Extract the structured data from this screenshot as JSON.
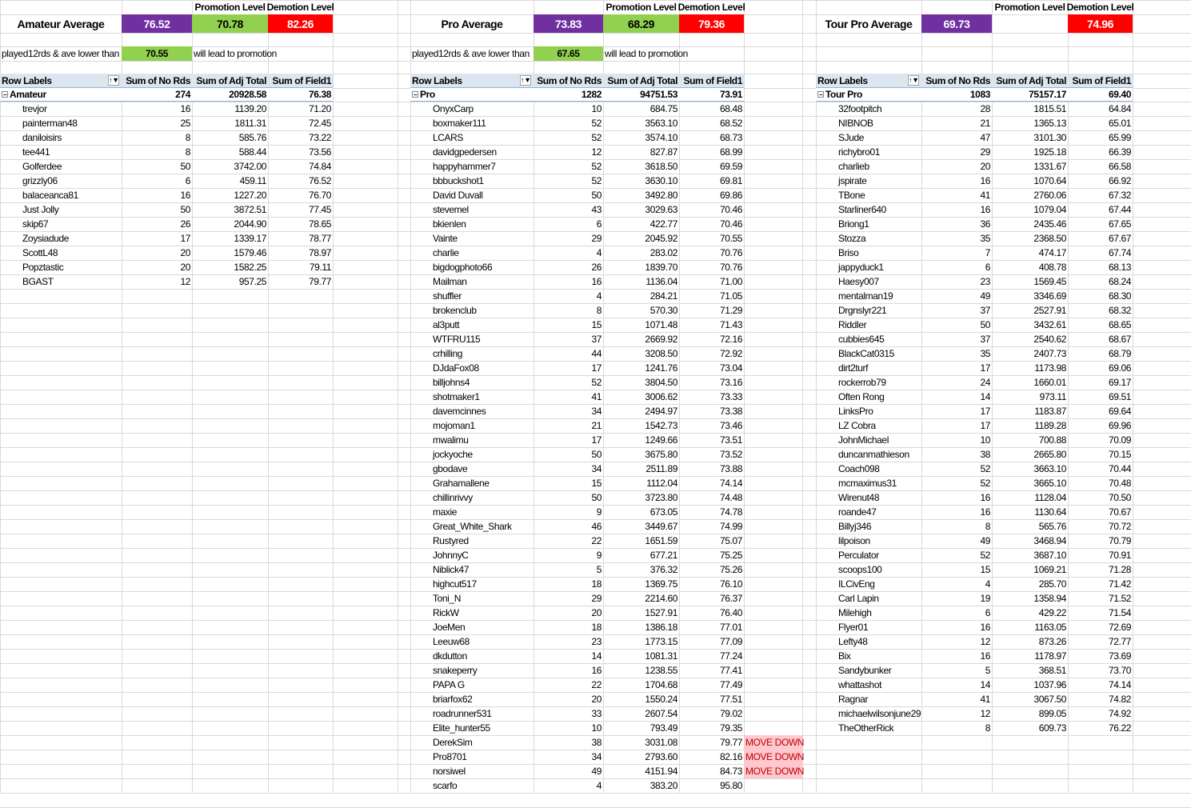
{
  "colors": {
    "average": "#7030A0",
    "promotion": "#92D050",
    "demotion": "#FF0000",
    "move_down_fill": "#FFC7CE",
    "move_down_text": "#C00000",
    "header": "#DCE6F1"
  },
  "icons": {
    "filter": "filter-sort-icon",
    "collapse": "collapse-minus-icon"
  },
  "labels": {
    "promotion_level": "Promotion Level",
    "demotion_level": "Demotion Level",
    "played_rule": "played12rds & ave lower than",
    "promotion_note": "will lead to promotion",
    "row_labels": "Row Labels",
    "col_rds": "Sum of No Rds",
    "col_adj": "Sum of Adj Total",
    "col_field": "Sum of Field1"
  },
  "panels": [
    {
      "average_title": "Amateur Average",
      "average": "76.52",
      "promotion": "70.78",
      "demotion": "82.26",
      "played_threshold": "70.55",
      "group": "Amateur",
      "total": {
        "rds": "274",
        "adj": "20928.58",
        "field": "76.38"
      },
      "rows": [
        [
          "trevjor",
          "16",
          "1139.20",
          "71.20"
        ],
        [
          "painterman48",
          "25",
          "1811.31",
          "72.45"
        ],
        [
          "daniloisirs",
          "8",
          "585.76",
          "73.22"
        ],
        [
          "tee441",
          "8",
          "588.44",
          "73.56"
        ],
        [
          "Golferdee",
          "50",
          "3742.00",
          "74.84"
        ],
        [
          "grizzly06",
          "6",
          "459.11",
          "76.52"
        ],
        [
          "balaceanca81",
          "16",
          "1227.20",
          "76.70"
        ],
        [
          "Just Jolly",
          "50",
          "3872.51",
          "77.45"
        ],
        [
          "skip67",
          "26",
          "2044.90",
          "78.65"
        ],
        [
          "Zoysiadude",
          "17",
          "1339.17",
          "78.77"
        ],
        [
          "ScottL48",
          "20",
          "1579.46",
          "78.97"
        ],
        [
          "Popztastic",
          "20",
          "1582.25",
          "79.11"
        ],
        [
          "BGAST",
          "12",
          "957.25",
          "79.77"
        ]
      ]
    },
    {
      "average_title": "Pro Average",
      "average": "73.83",
      "promotion": "68.29",
      "demotion": "79.36",
      "played_threshold": "67.65",
      "group": "Pro",
      "total": {
        "rds": "1282",
        "adj": "94751.53",
        "field": "73.91"
      },
      "rows": [
        [
          "OnyxCarp",
          "10",
          "684.75",
          "68.48"
        ],
        [
          "boxmaker111",
          "52",
          "3563.10",
          "68.52"
        ],
        [
          "LCARS",
          "52",
          "3574.10",
          "68.73"
        ],
        [
          "davidgpedersen",
          "12",
          "827.87",
          "68.99"
        ],
        [
          "happyhammer7",
          "52",
          "3618.50",
          "69.59"
        ],
        [
          "bbbuckshot1",
          "52",
          "3630.10",
          "69.81"
        ],
        [
          "David Duvall",
          "50",
          "3492.80",
          "69.86"
        ],
        [
          "stevemel",
          "43",
          "3029.63",
          "70.46"
        ],
        [
          "bkienlen",
          "6",
          "422.77",
          "70.46"
        ],
        [
          "Vainte",
          "29",
          "2045.92",
          "70.55"
        ],
        [
          "charlie",
          "4",
          "283.02",
          "70.76"
        ],
        [
          "bigdogphoto66",
          "26",
          "1839.70",
          "70.76"
        ],
        [
          "Mailman",
          "16",
          "1136.04",
          "71.00"
        ],
        [
          "shuffler",
          "4",
          "284.21",
          "71.05"
        ],
        [
          "brokenclub",
          "8",
          "570.30",
          "71.29"
        ],
        [
          "al3putt",
          "15",
          "1071.48",
          "71.43"
        ],
        [
          "WTFRU115",
          "37",
          "2669.92",
          "72.16"
        ],
        [
          "crhilling",
          "44",
          "3208.50",
          "72.92"
        ],
        [
          "DJdaFox08",
          "17",
          "1241.76",
          "73.04"
        ],
        [
          "billjohns4",
          "52",
          "3804.50",
          "73.16"
        ],
        [
          "shotmaker1",
          "41",
          "3006.62",
          "73.33"
        ],
        [
          "davemcinnes",
          "34",
          "2494.97",
          "73.38"
        ],
        [
          "mojoman1",
          "21",
          "1542.73",
          "73.46"
        ],
        [
          "mwalimu",
          "17",
          "1249.66",
          "73.51"
        ],
        [
          "jockyoche",
          "50",
          "3675.80",
          "73.52"
        ],
        [
          "gbodave",
          "34",
          "2511.89",
          "73.88"
        ],
        [
          "Grahamallene",
          "15",
          "1112.04",
          "74.14"
        ],
        [
          "chillinrivvy",
          "50",
          "3723.80",
          "74.48"
        ],
        [
          "maxie",
          "9",
          "673.05",
          "74.78"
        ],
        [
          "Great_White_Shark",
          "46",
          "3449.67",
          "74.99"
        ],
        [
          "Rustyred",
          "22",
          "1651.59",
          "75.07"
        ],
        [
          "JohnnyC",
          "9",
          "677.21",
          "75.25"
        ],
        [
          "Niblick47",
          "5",
          "376.32",
          "75.26"
        ],
        [
          "highcut517",
          "18",
          "1369.75",
          "76.10"
        ],
        [
          "Toni_N",
          "29",
          "2214.60",
          "76.37"
        ],
        [
          "RickW",
          "20",
          "1527.91",
          "76.40"
        ],
        [
          "JoeMen",
          "18",
          "1386.18",
          "77.01"
        ],
        [
          "Leeuw68",
          "23",
          "1773.15",
          "77.09"
        ],
        [
          "dkdutton",
          "14",
          "1081.31",
          "77.24"
        ],
        [
          "snakeperry",
          "16",
          "1238.55",
          "77.41"
        ],
        [
          "PAPA G",
          "22",
          "1704.68",
          "77.49"
        ],
        [
          "briarfox62",
          "20",
          "1550.24",
          "77.51"
        ],
        [
          "roadrunner531",
          "33",
          "2607.54",
          "79.02"
        ],
        [
          "Elite_hunter55",
          "10",
          "793.49",
          "79.35"
        ],
        [
          "DerekSim",
          "38",
          "3031.08",
          "79.77",
          "MOVE DOWN"
        ],
        [
          "Pro8701",
          "34",
          "2793.60",
          "82.16",
          "MOVE DOWN"
        ],
        [
          "norsiwel",
          "49",
          "4151.94",
          "84.73",
          "MOVE DOWN"
        ],
        [
          "scarfo",
          "4",
          "383.20",
          "95.80"
        ]
      ]
    },
    {
      "average_title": "Tour Pro Average",
      "average": "69.73",
      "promotion": "",
      "demotion": "74.96",
      "group": "Tour Pro",
      "total": {
        "rds": "1083",
        "adj": "75157.17",
        "field": "69.40"
      },
      "rows": [
        [
          "32footpitch",
          "28",
          "1815.51",
          "64.84"
        ],
        [
          "NIBNOB",
          "21",
          "1365.13",
          "65.01"
        ],
        [
          "SJude",
          "47",
          "3101.30",
          "65.99"
        ],
        [
          "richybro01",
          "29",
          "1925.18",
          "66.39"
        ],
        [
          "charlieb",
          "20",
          "1331.67",
          "66.58"
        ],
        [
          "jspirate",
          "16",
          "1070.64",
          "66.92"
        ],
        [
          "TBone",
          "41",
          "2760.06",
          "67.32"
        ],
        [
          "Starliner640",
          "16",
          "1079.04",
          "67.44"
        ],
        [
          "Briong1",
          "36",
          "2435.46",
          "67.65"
        ],
        [
          "Stozza",
          "35",
          "2368.50",
          "67.67"
        ],
        [
          "Briso",
          "7",
          "474.17",
          "67.74"
        ],
        [
          "jappyduck1",
          "6",
          "408.78",
          "68.13"
        ],
        [
          "Haesy007",
          "23",
          "1569.45",
          "68.24"
        ],
        [
          "mentalman19",
          "49",
          "3346.69",
          "68.30"
        ],
        [
          "Drgnslyr221",
          "37",
          "2527.91",
          "68.32"
        ],
        [
          "Riddler",
          "50",
          "3432.61",
          "68.65"
        ],
        [
          "cubbies645",
          "37",
          "2540.62",
          "68.67"
        ],
        [
          "BlackCat0315",
          "35",
          "2407.73",
          "68.79"
        ],
        [
          "dirt2turf",
          "17",
          "1173.98",
          "69.06"
        ],
        [
          "rockerrob79",
          "24",
          "1660.01",
          "69.17"
        ],
        [
          "Often Rong",
          "14",
          "973.11",
          "69.51"
        ],
        [
          "LinksPro",
          "17",
          "1183.87",
          "69.64"
        ],
        [
          "LZ Cobra",
          "17",
          "1189.28",
          "69.96"
        ],
        [
          "JohnMichael",
          "10",
          "700.88",
          "70.09"
        ],
        [
          "duncanmathieson",
          "38",
          "2665.80",
          "70.15"
        ],
        [
          "Coach098",
          "52",
          "3663.10",
          "70.44"
        ],
        [
          "mcmaximus31",
          "52",
          "3665.10",
          "70.48"
        ],
        [
          "Wirenut48",
          "16",
          "1128.04",
          "70.50"
        ],
        [
          "roande47",
          "16",
          "1130.64",
          "70.67"
        ],
        [
          "Billyj346",
          "8",
          "565.76",
          "70.72"
        ],
        [
          "lilpoison",
          "49",
          "3468.94",
          "70.79"
        ],
        [
          "Perculator",
          "52",
          "3687.10",
          "70.91"
        ],
        [
          "scoops100",
          "15",
          "1069.21",
          "71.28"
        ],
        [
          "ILCivEng",
          "4",
          "285.70",
          "71.42"
        ],
        [
          "Carl Lapin",
          "19",
          "1358.94",
          "71.52"
        ],
        [
          "Milehigh",
          "6",
          "429.22",
          "71.54"
        ],
        [
          "Flyer01",
          "16",
          "1163.05",
          "72.69"
        ],
        [
          "Lefty48",
          "12",
          "873.26",
          "72.77"
        ],
        [
          "Bix",
          "16",
          "1178.97",
          "73.69"
        ],
        [
          "Sandybunker",
          "5",
          "368.51",
          "73.70"
        ],
        [
          "whattashot",
          "14",
          "1037.96",
          "74.14"
        ],
        [
          "Ragnar",
          "41",
          "3067.50",
          "74.82"
        ],
        [
          "michaelwilsonjune29",
          "12",
          "899.05",
          "74.92"
        ],
        [
          "TheOtherRick",
          "8",
          "609.73",
          "76.22"
        ]
      ]
    }
  ]
}
